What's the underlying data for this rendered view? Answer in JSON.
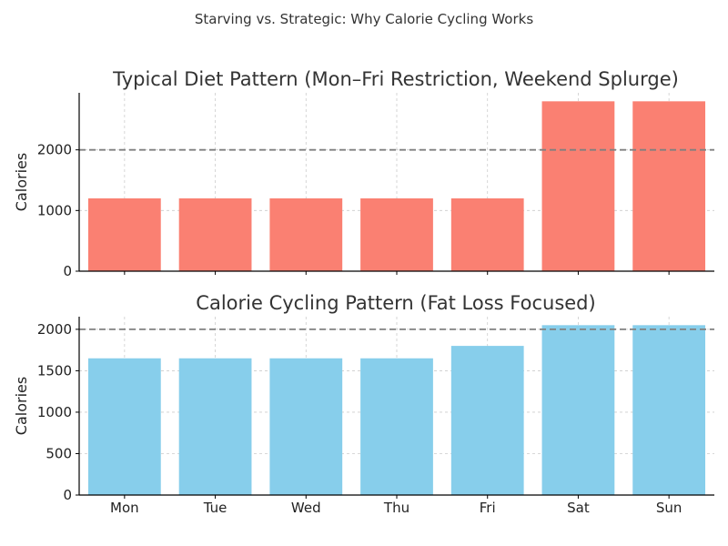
{
  "suptitle": "Starving vs. Strategic: Why Calorie Cycling Works",
  "colors": {
    "typical": "#fa8072",
    "cycling": "#87ceeb",
    "reference_line": "#808080",
    "grid": "#cccccc",
    "axis": "#000000",
    "text": "#333333"
  },
  "chart_data": [
    {
      "type": "bar",
      "title": "Typical Diet Pattern (Mon–Fri Restriction, Weekend Splurge)",
      "categories": [
        "Mon",
        "Tue",
        "Wed",
        "Thu",
        "Fri",
        "Sat",
        "Sun"
      ],
      "values": [
        1200,
        1200,
        1200,
        1200,
        1200,
        2800,
        2800
      ],
      "xlabel": "",
      "ylabel": "Calories",
      "ylim": [
        0,
        2940
      ],
      "yticks": [
        0,
        1000,
        2000
      ],
      "reference_line": {
        "y": 2000,
        "style": "dashed"
      },
      "grid": true,
      "show_xticklabels": false,
      "color": "#fa8072"
    },
    {
      "type": "bar",
      "title": "Calorie Cycling Pattern (Fat Loss Focused)",
      "categories": [
        "Mon",
        "Tue",
        "Wed",
        "Thu",
        "Fri",
        "Sat",
        "Sun"
      ],
      "values": [
        1650,
        1650,
        1650,
        1650,
        1800,
        2050,
        2050
      ],
      "xlabel": "",
      "ylabel": "Calories",
      "ylim": [
        0,
        2152.5
      ],
      "yticks": [
        0,
        500,
        1000,
        1500,
        2000
      ],
      "reference_line": {
        "y": 2000,
        "style": "dashed"
      },
      "grid": true,
      "show_xticklabels": true,
      "color": "#87ceeb"
    }
  ]
}
